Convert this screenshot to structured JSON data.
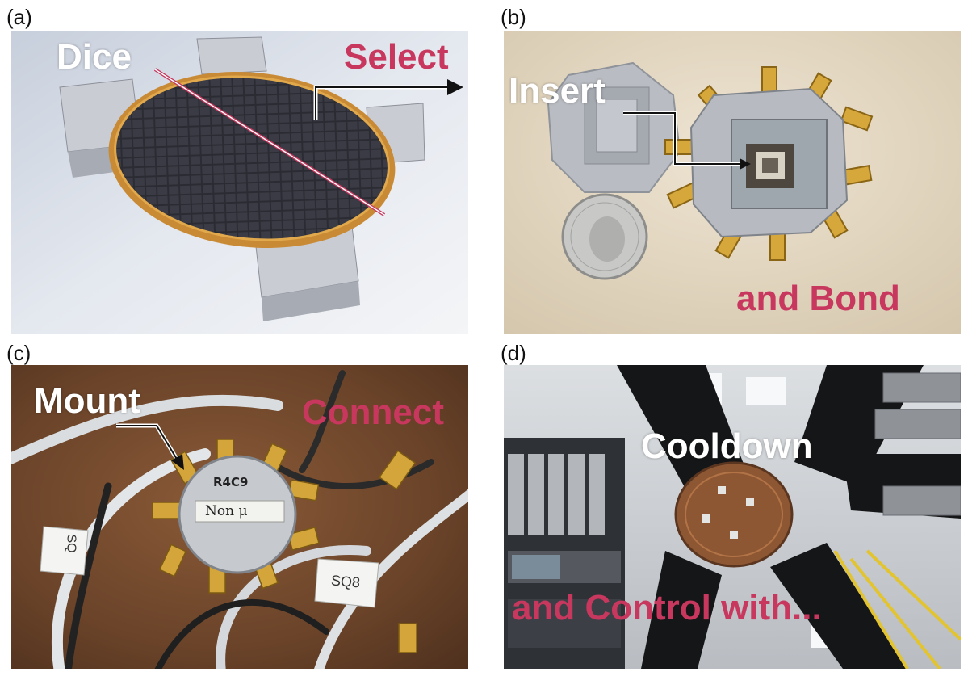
{
  "panels": {
    "a": {
      "label": "(a)",
      "caption_white": "Dice",
      "caption_red": "Select"
    },
    "b": {
      "label": "(b)",
      "caption_white": "Insert",
      "caption_red": "and Bond"
    },
    "c": {
      "label": "(c)",
      "caption_white": "Mount",
      "caption_red": "Connect",
      "chip_text_1": "R4C9",
      "chip_text_2": "Non μ",
      "tag_text_1": "SQ",
      "tag_text_2": "SQ8"
    },
    "d": {
      "label": "(d)",
      "caption_white": "Cooldown",
      "caption_red": "and Control with..."
    }
  },
  "colors": {
    "caption_red": "#c8375e",
    "caption_white": "#ffffff",
    "annotation_line": "#c8375e"
  }
}
